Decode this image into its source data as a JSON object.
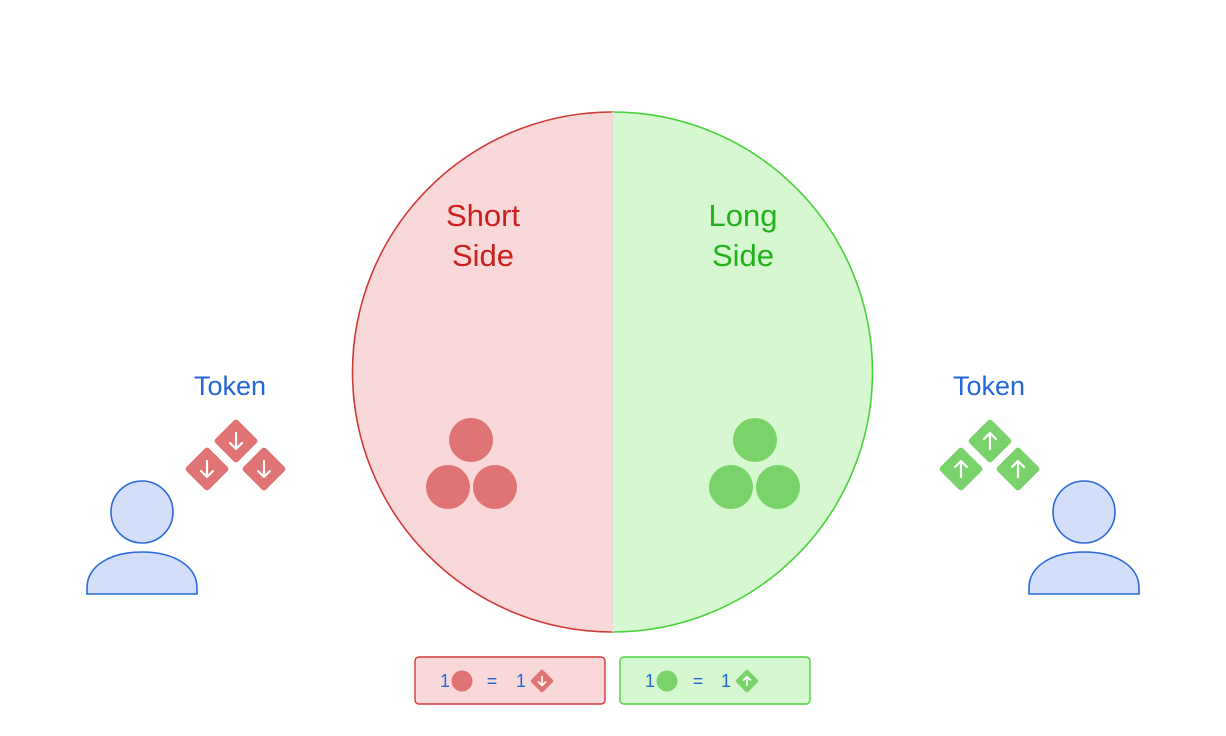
{
  "colors": {
    "short_stroke": "#d23a3a",
    "short_fill": "#f8d8d8",
    "short_text": "#cc1f1f",
    "short_mark": "#e07373",
    "long_stroke": "#48d23a",
    "long_fill": "#d6f8d0",
    "long_text": "#22b11a",
    "long_mark": "#7ad36a",
    "user_fill": "#d2defa",
    "user_stroke": "#2d68dc",
    "label_blue": "#2466dc"
  },
  "short_side": {
    "line1": "Short",
    "line2": "Side",
    "icon": "arrow-down-icon"
  },
  "long_side": {
    "line1": "Long",
    "line2": "Side",
    "icon": "arrow-up-icon"
  },
  "left_user": {
    "token_label": "Token",
    "icon": "user-icon"
  },
  "right_user": {
    "token_label": "Token",
    "icon": "user-icon"
  },
  "legend_short": {
    "count_left": "1",
    "equals": "=",
    "count_right": "1"
  },
  "legend_long": {
    "count_left": "1",
    "equals": "=",
    "count_right": "1"
  }
}
